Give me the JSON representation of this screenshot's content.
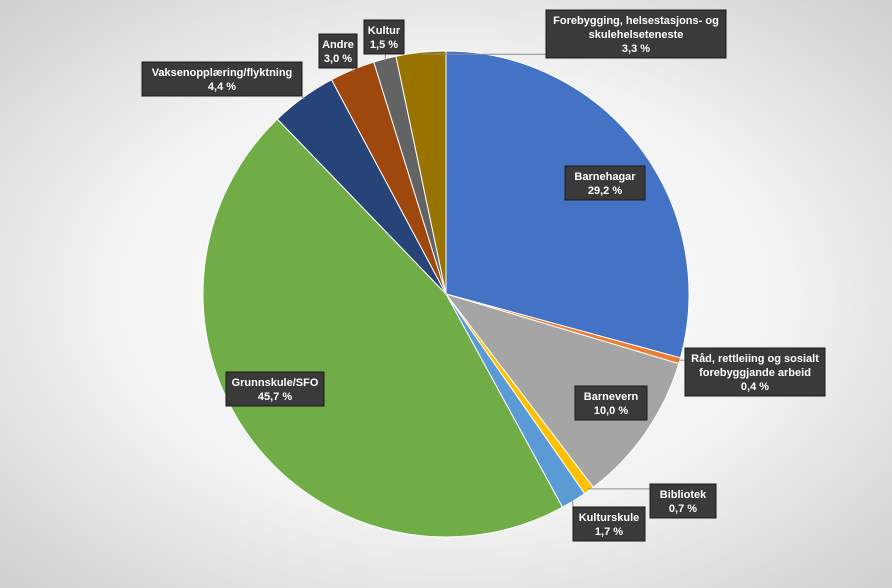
{
  "chart_data": {
    "type": "pie",
    "title": "",
    "start_angle_deg": 0,
    "direction": "clockwise",
    "slices": [
      {
        "name": "Barnehagar",
        "value": 29.2,
        "label_lines": [
          "Barnehagar",
          "29,2 %"
        ],
        "color": "#4472c4"
      },
      {
        "name": "Råd, rettleiing og sosialt forebyggjande arbeid",
        "value": 0.4,
        "label_lines": [
          "Råd,  rettleiing og sosialt",
          "forebyggjande  arbeid",
          "0,4 %"
        ],
        "color": "#ed7d31"
      },
      {
        "name": "Barnevern",
        "value": 10.0,
        "label_lines": [
          "Barnevern",
          "10,0 %"
        ],
        "color": "#a5a5a5"
      },
      {
        "name": "Bibliotek",
        "value": 0.7,
        "label_lines": [
          "Bibliotek",
          "0,7 %"
        ],
        "color": "#ffc000"
      },
      {
        "name": "Kulturskule",
        "value": 1.7,
        "label_lines": [
          "Kulturskule",
          "1,7 %"
        ],
        "color": "#5b9bd5"
      },
      {
        "name": "Grunnskule/SFO",
        "value": 45.7,
        "label_lines": [
          "Grunnskule/SFO",
          "45,7 %"
        ],
        "color": "#70ad47"
      },
      {
        "name": "Vaksenopplæring/flyktning",
        "value": 4.4,
        "label_lines": [
          "Vaksenopplæring/flyktning",
          "4,4 %"
        ],
        "color": "#264478"
      },
      {
        "name": "Andre",
        "value": 3.0,
        "label_lines": [
          "Andre",
          "3,0 %"
        ],
        "color": "#9e480e"
      },
      {
        "name": "Kultur",
        "value": 1.5,
        "label_lines": [
          "Kultur",
          "1,5 %"
        ],
        "color": "#636363"
      },
      {
        "name": "Forebygging, helsestasjons- og skulehelseteneste",
        "value": 3.3,
        "label_lines": [
          "Forebygging,  helsestasjons-  og",
          "skulehelseteneste",
          "3,3 %"
        ],
        "color": "#997300"
      }
    ]
  }
}
